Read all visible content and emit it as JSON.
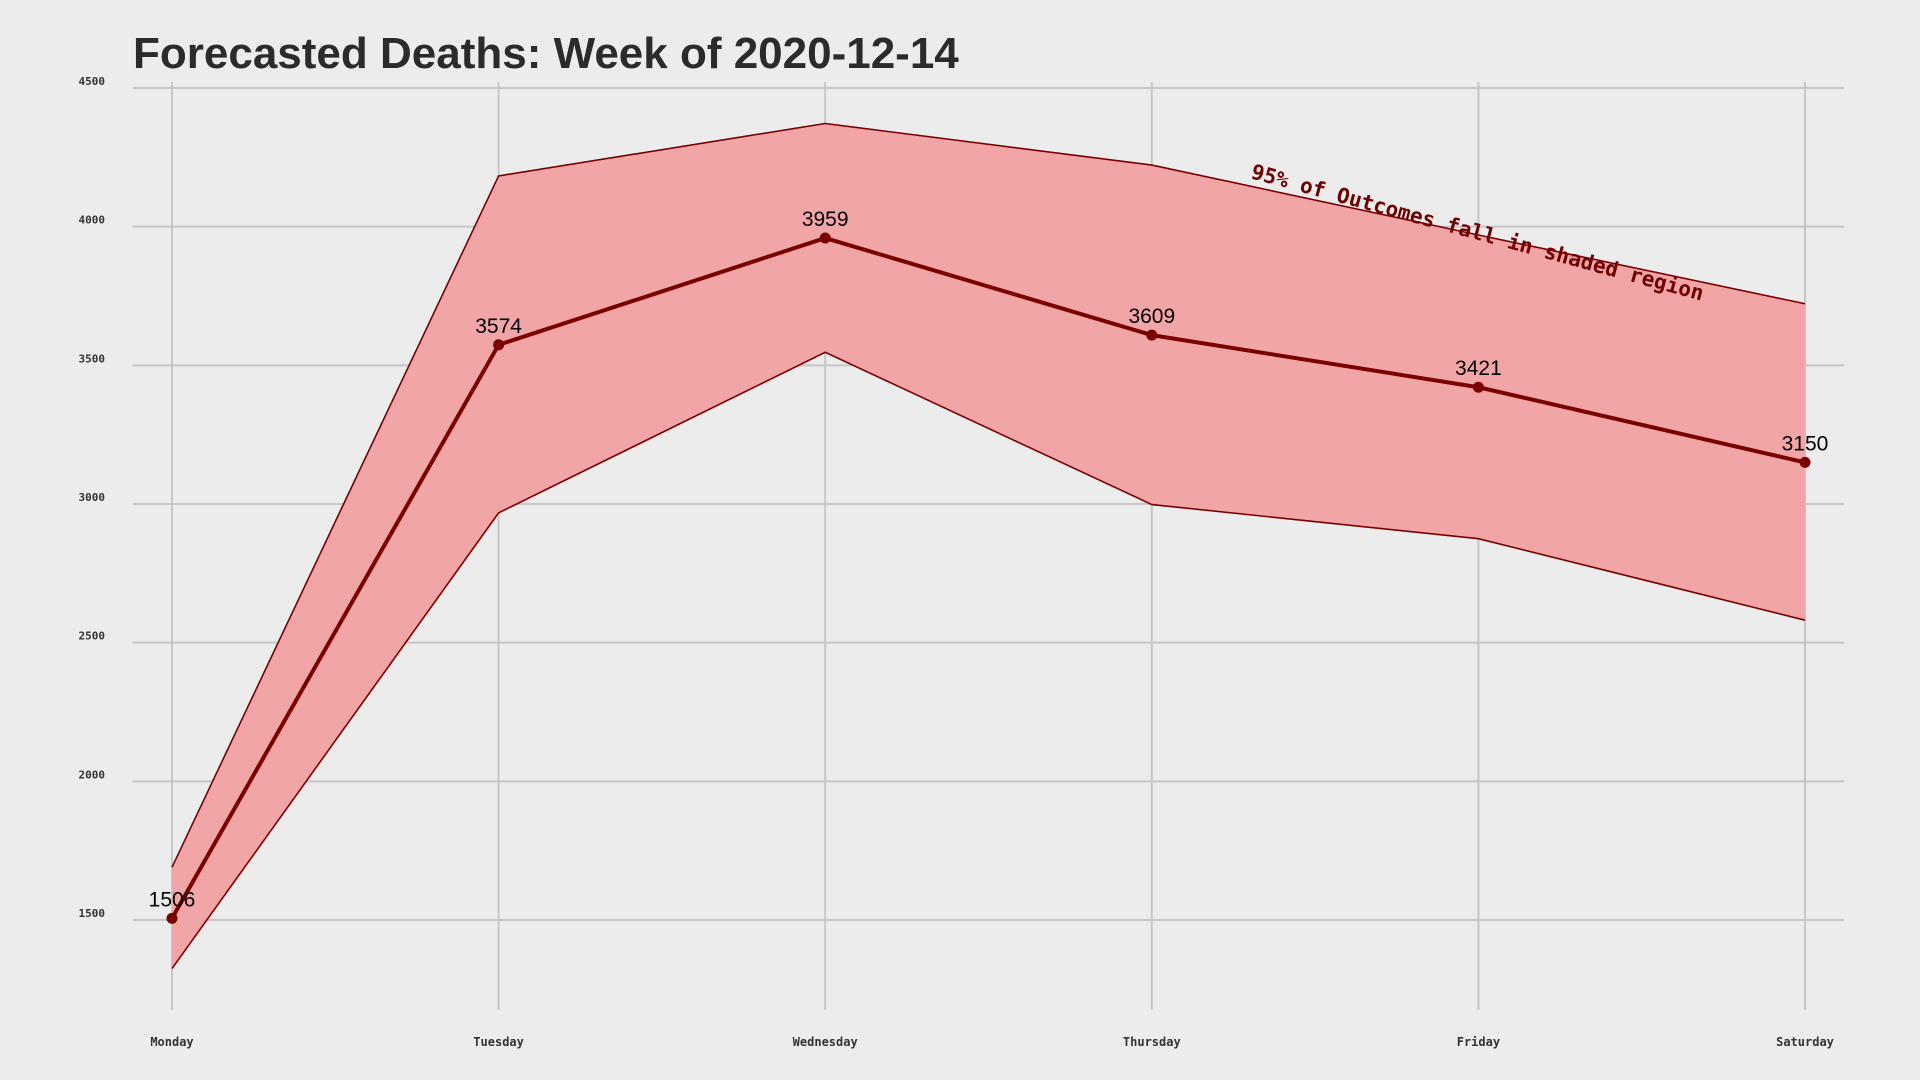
{
  "chart_data": {
    "type": "line",
    "title": "Forecasted Deaths: Week of 2020-12-14",
    "xlabel": "",
    "ylabel": "",
    "categories": [
      "Monday",
      "Tuesday",
      "Wednesday",
      "Thursday",
      "Friday",
      "Saturday"
    ],
    "series": [
      {
        "values": [
          1506,
          3574,
          3959,
          3609,
          3421,
          3150
        ]
      }
    ],
    "interval": {
      "upper": [
        1690,
        4183,
        4372,
        4222,
        3970,
        3722
      ],
      "lower": [
        1325,
        2968,
        3547,
        2998,
        2875,
        2581
      ]
    },
    "data_labels": [
      "1506",
      "3574",
      "3959",
      "3609",
      "3421",
      "3150"
    ],
    "annotation": "95% of Outcomes fall in shaded region",
    "yticks": [
      1500,
      2000,
      2500,
      3000,
      3500,
      4000,
      4500
    ],
    "ylim": [
      1200,
      4500
    ],
    "grid": true,
    "legend": "none",
    "colors": {
      "line": "#7a0000",
      "band_fill": "#f2a5a7",
      "band_edge": "#7a0000",
      "annotation": "#6e0000",
      "background": "#ececec",
      "grid": "#c6c6c6"
    }
  }
}
